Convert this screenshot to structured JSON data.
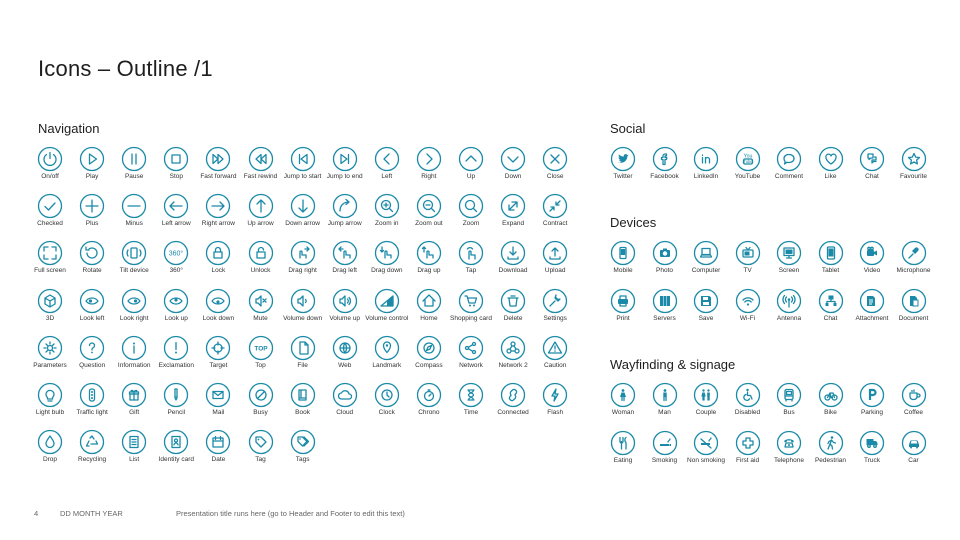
{
  "title": "Icons – Outline /1",
  "colors": {
    "accent": "#1a8aa8",
    "text": "#1e1e1e"
  },
  "sections": {
    "navigation": {
      "title": "Navigation",
      "rows": [
        [
          {
            "label": "On/off",
            "icon": "power-icon"
          },
          {
            "label": "Play",
            "icon": "play-icon"
          },
          {
            "label": "Pause",
            "icon": "pause-icon"
          },
          {
            "label": "Stop",
            "icon": "stop-icon"
          },
          {
            "label": "Fast forward",
            "icon": "fast-forward-icon"
          },
          {
            "label": "Fast rewind",
            "icon": "fast-rewind-icon"
          },
          {
            "label": "Jump to start",
            "icon": "jump-start-icon"
          },
          {
            "label": "Jump to end",
            "icon": "jump-end-icon"
          },
          {
            "label": "Left",
            "icon": "chevron-left-icon"
          },
          {
            "label": "Right",
            "icon": "chevron-right-icon"
          },
          {
            "label": "Up",
            "icon": "chevron-up-icon"
          },
          {
            "label": "Down",
            "icon": "chevron-down-icon"
          },
          {
            "label": "Close",
            "icon": "close-icon"
          }
        ],
        [
          {
            "label": "Checked",
            "icon": "check-icon"
          },
          {
            "label": "Plus",
            "icon": "plus-icon"
          },
          {
            "label": "Minus",
            "icon": "minus-icon"
          },
          {
            "label": "Left arrow",
            "icon": "arrow-left-icon"
          },
          {
            "label": "Right arrow",
            "icon": "arrow-right-icon"
          },
          {
            "label": "Up arrow",
            "icon": "arrow-up-icon"
          },
          {
            "label": "Down arrow",
            "icon": "arrow-down-icon"
          },
          {
            "label": "Jump arrow",
            "icon": "jump-arrow-icon"
          },
          {
            "label": "Zoom in",
            "icon": "zoom-in-icon"
          },
          {
            "label": "Zoom out",
            "icon": "zoom-out-icon"
          },
          {
            "label": "Zoom",
            "icon": "zoom-icon"
          },
          {
            "label": "Expand",
            "icon": "expand-icon"
          },
          {
            "label": "Contract",
            "icon": "contract-icon"
          }
        ],
        [
          {
            "label": "Full screen",
            "icon": "full-screen-icon"
          },
          {
            "label": "Rotate",
            "icon": "rotate-icon"
          },
          {
            "label": "Tilt device",
            "icon": "tilt-device-icon"
          },
          {
            "label": "360°",
            "icon": "degrees-360-icon"
          },
          {
            "label": "Lock",
            "icon": "lock-icon"
          },
          {
            "label": "Unlock",
            "icon": "unlock-icon"
          },
          {
            "label": "Drag right",
            "icon": "drag-right-icon"
          },
          {
            "label": "Drag left",
            "icon": "drag-left-icon"
          },
          {
            "label": "Drag down",
            "icon": "drag-down-icon"
          },
          {
            "label": "Drag up",
            "icon": "drag-up-icon"
          },
          {
            "label": "Tap",
            "icon": "tap-icon"
          },
          {
            "label": "Download",
            "icon": "download-icon"
          },
          {
            "label": "Upload",
            "icon": "upload-icon"
          }
        ],
        [
          {
            "label": "3D",
            "icon": "cube-3d-icon"
          },
          {
            "label": "Look left",
            "icon": "look-left-icon"
          },
          {
            "label": "Look right",
            "icon": "look-right-icon"
          },
          {
            "label": "Look up",
            "icon": "look-up-icon"
          },
          {
            "label": "Look down",
            "icon": "look-down-icon"
          },
          {
            "label": "Mute",
            "icon": "mute-icon"
          },
          {
            "label": "Volume down",
            "icon": "volume-down-icon"
          },
          {
            "label": "Volume up",
            "icon": "volume-up-icon"
          },
          {
            "label": "Volume control",
            "icon": "volume-control-icon"
          },
          {
            "label": "Home",
            "icon": "home-icon"
          },
          {
            "label": "Shopping card",
            "icon": "shopping-cart-icon"
          },
          {
            "label": "Delete",
            "icon": "delete-icon"
          },
          {
            "label": "Settings",
            "icon": "settings-icon"
          }
        ],
        [
          {
            "label": "Parameters",
            "icon": "parameters-icon"
          },
          {
            "label": "Question",
            "icon": "question-icon"
          },
          {
            "label": "Information",
            "icon": "information-icon"
          },
          {
            "label": "Exclamation",
            "icon": "exclamation-icon"
          },
          {
            "label": "Target",
            "icon": "target-icon"
          },
          {
            "label": "Top",
            "icon": "top-icon"
          },
          {
            "label": "File",
            "icon": "file-icon"
          },
          {
            "label": "Web",
            "icon": "web-icon"
          },
          {
            "label": "Landmark",
            "icon": "landmark-icon"
          },
          {
            "label": "Compass",
            "icon": "compass-icon"
          },
          {
            "label": "Network",
            "icon": "network-icon"
          },
          {
            "label": "Network 2",
            "icon": "network-2-icon"
          },
          {
            "label": "Caution",
            "icon": "caution-icon"
          }
        ],
        [
          {
            "label": "Light bulb",
            "icon": "light-bulb-icon"
          },
          {
            "label": "Traffic light",
            "icon": "traffic-light-icon"
          },
          {
            "label": "Gift",
            "icon": "gift-icon"
          },
          {
            "label": "Pencil",
            "icon": "pencil-icon"
          },
          {
            "label": "Mail",
            "icon": "mail-icon"
          },
          {
            "label": "Busy",
            "icon": "busy-icon"
          },
          {
            "label": "Book",
            "icon": "book-icon"
          },
          {
            "label": "Cloud",
            "icon": "cloud-icon"
          },
          {
            "label": "Clock",
            "icon": "clock-icon"
          },
          {
            "label": "Chrono",
            "icon": "chrono-icon"
          },
          {
            "label": "Time",
            "icon": "time-icon"
          },
          {
            "label": "Connected",
            "icon": "connected-icon"
          },
          {
            "label": "Flash",
            "icon": "flash-icon"
          }
        ],
        [
          {
            "label": "Drop",
            "icon": "drop-icon"
          },
          {
            "label": "Recycling",
            "icon": "recycling-icon"
          },
          {
            "label": "List",
            "icon": "list-icon"
          },
          {
            "label": "Identity card",
            "icon": "identity-card-icon"
          },
          {
            "label": "Date",
            "icon": "date-icon"
          },
          {
            "label": "Tag",
            "icon": "tag-icon"
          },
          {
            "label": "Tags",
            "icon": "tags-icon"
          }
        ]
      ]
    },
    "social": {
      "title": "Social",
      "items": [
        {
          "label": "Twitter",
          "icon": "twitter-icon"
        },
        {
          "label": "Facebook",
          "icon": "facebook-icon"
        },
        {
          "label": "LinkedIn",
          "icon": "linkedin-icon"
        },
        {
          "label": "YouTube",
          "icon": "youtube-icon",
          "glyph": "You Tube"
        },
        {
          "label": "Comment",
          "icon": "comment-icon"
        },
        {
          "label": "Like",
          "icon": "like-icon"
        },
        {
          "label": "Chat",
          "icon": "chat-icon"
        },
        {
          "label": "Favourite",
          "icon": "favourite-icon"
        }
      ]
    },
    "devices": {
      "title": "Devices",
      "rows": [
        [
          {
            "label": "Mobile",
            "icon": "mobile-icon"
          },
          {
            "label": "Photo",
            "icon": "photo-icon"
          },
          {
            "label": "Computer",
            "icon": "computer-icon"
          },
          {
            "label": "TV",
            "icon": "tv-icon"
          },
          {
            "label": "Screen",
            "icon": "screen-icon"
          },
          {
            "label": "Tablet",
            "icon": "tablet-icon"
          },
          {
            "label": "Video",
            "icon": "video-icon"
          },
          {
            "label": "Microphone",
            "icon": "microphone-icon"
          }
        ],
        [
          {
            "label": "Print",
            "icon": "print-icon"
          },
          {
            "label": "Servers",
            "icon": "servers-icon"
          },
          {
            "label": "Save",
            "icon": "save-icon"
          },
          {
            "label": "Wi-Fi",
            "icon": "wifi-icon"
          },
          {
            "label": "Antenna",
            "icon": "antenna-icon"
          },
          {
            "label": "Chat",
            "icon": "network-chat-icon"
          },
          {
            "label": "Attachment",
            "icon": "attachment-icon"
          },
          {
            "label": "Document",
            "icon": "document-icon"
          }
        ]
      ]
    },
    "wayfinding": {
      "title": "Wayfinding & signage",
      "rows": [
        [
          {
            "label": "Woman",
            "icon": "woman-icon"
          },
          {
            "label": "Man",
            "icon": "man-icon"
          },
          {
            "label": "Couple",
            "icon": "couple-icon"
          },
          {
            "label": "Disabled",
            "icon": "disabled-icon"
          },
          {
            "label": "Bus",
            "icon": "bus-icon"
          },
          {
            "label": "Bike",
            "icon": "bike-icon"
          },
          {
            "label": "Parking",
            "icon": "parking-icon"
          },
          {
            "label": "Coffee",
            "icon": "coffee-icon"
          }
        ],
        [
          {
            "label": "Eating",
            "icon": "eating-icon"
          },
          {
            "label": "Smoking",
            "icon": "smoking-icon"
          },
          {
            "label": "Non smoking",
            "icon": "non-smoking-icon"
          },
          {
            "label": "First aid",
            "icon": "first-aid-icon"
          },
          {
            "label": "Telephone",
            "icon": "telephone-icon"
          },
          {
            "label": "Pedestrian",
            "icon": "pedestrian-icon"
          },
          {
            "label": "Truck",
            "icon": "truck-icon"
          },
          {
            "label": "Car",
            "icon": "car-icon"
          }
        ]
      ]
    }
  },
  "footer": {
    "page": "4",
    "date": "DD MONTH YEAR",
    "note": "Presentation title runs here (go to Header and Footer to edit this text)"
  }
}
